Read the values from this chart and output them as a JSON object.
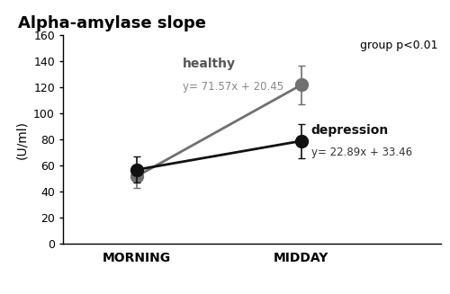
{
  "title": "Alpha-amylase slope",
  "ylabel": "(U/ml)",
  "x_labels": [
    "MORNING",
    "MIDDAY"
  ],
  "x_positions": [
    0,
    1
  ],
  "healthy_means": [
    52,
    122
  ],
  "healthy_errors": [
    9,
    15
  ],
  "healthy_color": "#707070",
  "depression_means": [
    57,
    79
  ],
  "depression_errors": [
    10,
    13
  ],
  "depression_color": "#111111",
  "ylim": [
    0,
    160
  ],
  "yticks": [
    0,
    20,
    40,
    60,
    80,
    100,
    120,
    140,
    160
  ],
  "annotation_group": "group p<0.01",
  "annotation_healthy_label": "healthy",
  "annotation_healthy_eq": "y= 71.57x + 20.45",
  "annotation_depression_label": "depression",
  "annotation_depression_eq": "y= 22.89x + 33.46",
  "marker_size": 10,
  "line_width": 2.0,
  "capsize": 3,
  "elinewidth": 1.2,
  "label_gray": "#555555",
  "eq_gray": "#888888"
}
